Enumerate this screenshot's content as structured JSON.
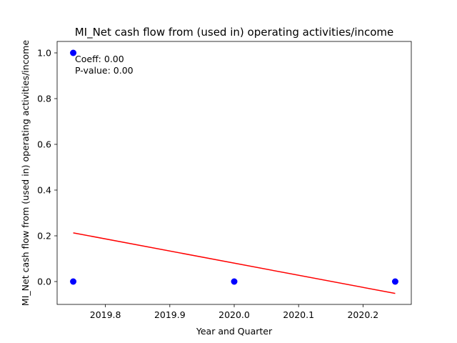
{
  "chart_data": {
    "type": "scatter",
    "title": "MI_Net cash flow from (used in) operating activities/income",
    "xlabel": "Year and Quarter",
    "ylabel": "MI_Net cash flow from (used in) operating activities/income",
    "xlim": [
      2019.725,
      2020.275
    ],
    "ylim": [
      -0.1,
      1.05
    ],
    "x_ticks": [
      2019.8,
      2019.9,
      2020.0,
      2020.1,
      2020.2
    ],
    "x_tick_labels": [
      "2019.8",
      "2019.9",
      "2020.0",
      "2020.1",
      "2020.2"
    ],
    "y_ticks": [
      0.0,
      0.2,
      0.4,
      0.6,
      0.8,
      1.0
    ],
    "y_tick_labels": [
      "0.0",
      "0.2",
      "0.4",
      "0.6",
      "0.8",
      "1.0"
    ],
    "grid": false,
    "points": [
      {
        "x": 2019.75,
        "y": 1.0
      },
      {
        "x": 2019.75,
        "y": 0.0
      },
      {
        "x": 2020.0,
        "y": 0.0
      },
      {
        "x": 2020.25,
        "y": 0.0
      }
    ],
    "trend_line": {
      "x": [
        2019.75,
        2020.25
      ],
      "y": [
        0.213,
        -0.052
      ]
    },
    "annotations": [
      "Coeff: 0.00",
      "P-value: 0.00"
    ],
    "colors": {
      "points": "#0000ff",
      "trend_line": "#ff0000"
    }
  }
}
